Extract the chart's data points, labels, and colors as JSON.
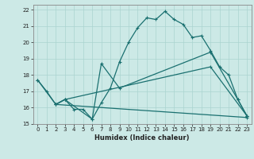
{
  "xlabel": "Humidex (Indice chaleur)",
  "background_color": "#cce9e6",
  "grid_color": "#aad4d0",
  "line_color": "#1a7070",
  "xlim": [
    -0.5,
    23.5
  ],
  "ylim": [
    15,
    22.3
  ],
  "xticks": [
    0,
    1,
    2,
    3,
    4,
    5,
    6,
    7,
    8,
    9,
    10,
    11,
    12,
    13,
    14,
    15,
    16,
    17,
    18,
    19,
    20,
    21,
    22,
    23
  ],
  "yticks": [
    15,
    16,
    17,
    18,
    19,
    20,
    21,
    22
  ],
  "line1_x": [
    0,
    1,
    2,
    3,
    4,
    5,
    6,
    7,
    8,
    9,
    10,
    11,
    12,
    13,
    14,
    15,
    16,
    17,
    18,
    19,
    20,
    21,
    22,
    23
  ],
  "line1_y": [
    17.7,
    17.0,
    16.2,
    16.5,
    15.9,
    15.9,
    15.3,
    16.3,
    17.2,
    18.8,
    20.0,
    20.9,
    21.5,
    21.4,
    21.9,
    21.4,
    21.1,
    20.3,
    20.4,
    19.5,
    18.5,
    18.0,
    16.5,
    15.5
  ],
  "line2_x": [
    0,
    2,
    3,
    6,
    7,
    9,
    19,
    22,
    23
  ],
  "line2_y": [
    17.7,
    16.2,
    16.5,
    15.3,
    18.7,
    17.2,
    19.4,
    16.5,
    15.5
  ],
  "line3_x": [
    2,
    3,
    19,
    23
  ],
  "line3_y": [
    16.2,
    16.5,
    18.5,
    15.5
  ],
  "line4_x": [
    2,
    23
  ],
  "line4_y": [
    16.2,
    15.4
  ]
}
